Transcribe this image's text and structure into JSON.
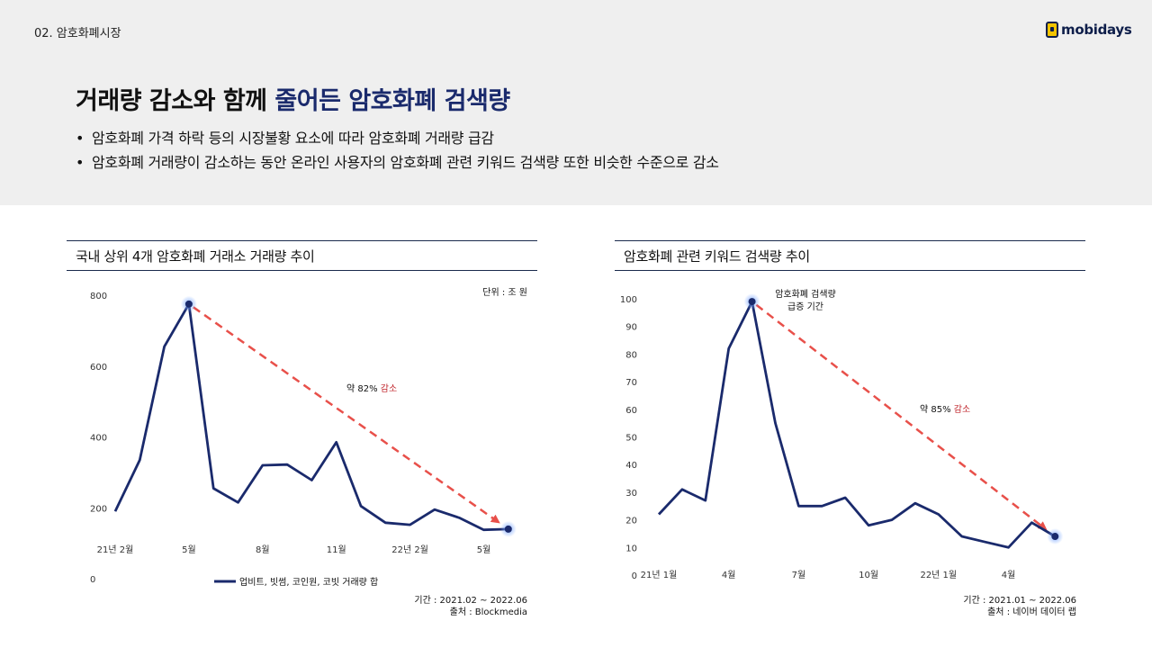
{
  "section": "02. 암호화폐시장",
  "brand": "mobidays",
  "title": {
    "main": "거래량 감소와 함께 ",
    "accent": "줄어든 암호화폐 검색량"
  },
  "bullets": [
    "암호화폐 가격 하락 등의 시장불황 요소에 따라 암호화폐 거래량 급감",
    "암호화폐 거래량이 감소하는 동안 온라인 사용자의 암호화폐 관련 키워드 검색량 또한 비슷한 수준으로 감소"
  ],
  "colors": {
    "line": "#1a2a6c",
    "arrow": "#e8504a",
    "accent_text": "#c0262c",
    "highlight": "#1a2a6c"
  },
  "chart_data": [
    {
      "type": "line",
      "title": "국내 상위 4개 암호화폐 거래소 거래량 추이",
      "unit": "단위 : 조 원",
      "yticks": [
        "800",
        "600",
        "400",
        "200",
        "0"
      ],
      "ylim": [
        0,
        800
      ],
      "xticks": [
        {
          "label": "21년 2월",
          "i": 0
        },
        {
          "label": "5월",
          "i": 3
        },
        {
          "label": "8월",
          "i": 6
        },
        {
          "label": "11월",
          "i": 9
        },
        {
          "label": "22년 2월",
          "i": 12
        },
        {
          "label": "5월",
          "i": 15
        }
      ],
      "series": [
        {
          "name": "업비트, 빗썸, 코인원, 코빗 거래량 합",
          "values": [
            190,
            335,
            655,
            775,
            255,
            215,
            320,
            322,
            278,
            385,
            205,
            158,
            152,
            195,
            172,
            138,
            140
          ]
        }
      ],
      "trend": {
        "from": 3,
        "to": 16,
        "label": "약 82%",
        "label_accent": "감소"
      },
      "source": {
        "period": "기간 : 2021.02 ~ 2022.06",
        "origin": "출처 : Blockmedia"
      }
    },
    {
      "type": "line",
      "title": "암호화폐 관련 키워드 검색량 추이",
      "yticks": [
        "100",
        "90",
        "80",
        "70",
        "60",
        "50",
        "40",
        "30",
        "20",
        "10",
        "0"
      ],
      "ylim": [
        0,
        100
      ],
      "xticks": [
        {
          "label": "21년 1월",
          "i": 0
        },
        {
          "label": "4월",
          "i": 3
        },
        {
          "label": "7월",
          "i": 6
        },
        {
          "label": "10월",
          "i": 9
        },
        {
          "label": "22년 1월",
          "i": 12
        },
        {
          "label": "4월",
          "i": 15
        }
      ],
      "series": [
        {
          "name": "",
          "values": [
            22,
            31,
            27,
            82,
            99,
            55,
            25,
            25,
            28,
            18,
            20,
            26,
            22,
            14,
            12,
            10,
            19,
            14
          ]
        }
      ],
      "peak_note": [
        "암호화폐 검색량",
        "급증 기간"
      ],
      "trend": {
        "from": 4,
        "to": 17,
        "label": "약 85%",
        "label_accent": "감소"
      },
      "source": {
        "period": "기간 : 2021.01 ~ 2022.06",
        "origin": "출처 : 네이버 데이터 랩"
      }
    }
  ]
}
